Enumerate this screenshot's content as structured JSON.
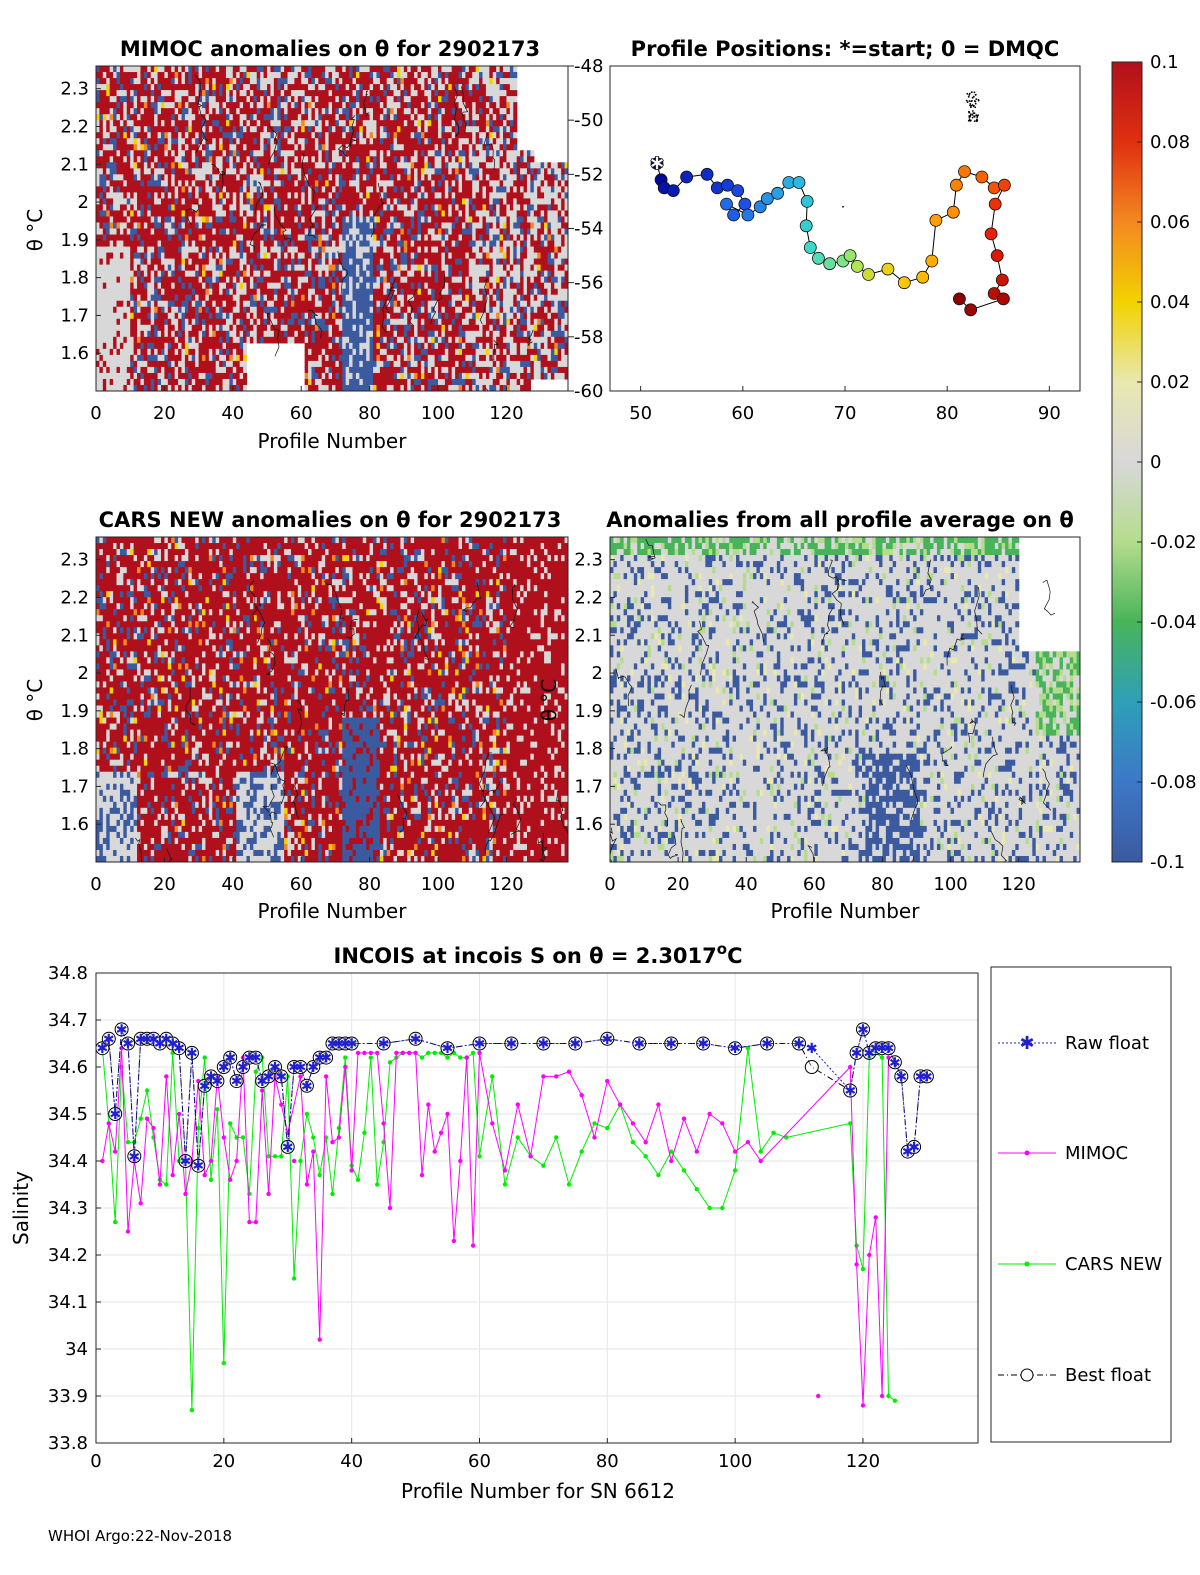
{
  "footer": "WHOI Argo:22-Nov-2018",
  "colorbar": {
    "ticks": [
      "0.1",
      "0.08",
      "0.06",
      "0.04",
      "0.02",
      "0",
      "-0.02",
      "-0.04",
      "-0.06",
      "-0.08",
      "-0.1"
    ],
    "range": [
      -0.1,
      0.1
    ]
  },
  "chart_data": [
    {
      "id": "mimoc-anom",
      "type": "heatmap",
      "title": "MIMOC anomalies on θ  for 2902173",
      "xlabel": "Profile Number",
      "ylabel": "θ °C",
      "xlim": [
        0,
        138
      ],
      "ylim": [
        1.5,
        2.36
      ],
      "xticks": [
        "0",
        "20",
        "40",
        "60",
        "80",
        "100",
        "120"
      ],
      "yticks": [
        "2.3",
        "2.2",
        "2.1",
        "2",
        "1.9",
        "1.8",
        "1.7",
        "1.6"
      ],
      "right_yticks": [
        "-48",
        "-50",
        "-52",
        "-54",
        "-56",
        "-58",
        "-60"
      ]
    },
    {
      "id": "positions",
      "type": "scatter",
      "title": "Profile Positions: *=start; 0 = DMQC",
      "xlim": [
        47,
        93
      ],
      "ylim": [
        -60,
        -48
      ],
      "xticks": [
        "50",
        "60",
        "70",
        "80",
        "90"
      ],
      "track": [
        [
          51.6,
          -51.6
        ],
        [
          52,
          -52.2
        ],
        [
          52.3,
          -52.5
        ],
        [
          53.2,
          -52.6
        ],
        [
          54.5,
          -52.1
        ],
        [
          56.5,
          -52.0
        ],
        [
          57.5,
          -52.5
        ],
        [
          58.5,
          -52.4
        ],
        [
          59.5,
          -52.6
        ],
        [
          60.2,
          -53.1
        ],
        [
          59.1,
          -53.5
        ],
        [
          58.4,
          -53.1
        ],
        [
          60.5,
          -53.5
        ],
        [
          61.7,
          -53.2
        ],
        [
          62.4,
          -52.9
        ],
        [
          63.4,
          -52.7
        ],
        [
          64.5,
          -52.3
        ],
        [
          65.5,
          -52.3
        ],
        [
          66.3,
          -53.0
        ],
        [
          66.2,
          -53.9
        ],
        [
          66.6,
          -54.7
        ],
        [
          67.4,
          -55.1
        ],
        [
          68.5,
          -55.3
        ],
        [
          69.8,
          -55.2
        ],
        [
          70.5,
          -55.0
        ],
        [
          71.2,
          -55.4
        ],
        [
          72.3,
          -55.7
        ],
        [
          74.2,
          -55.5
        ],
        [
          75.8,
          -56.0
        ],
        [
          77.6,
          -55.8
        ],
        [
          78.5,
          -55.2
        ],
        [
          78.9,
          -53.7
        ],
        [
          80.6,
          -53.4
        ],
        [
          80.9,
          -52.4
        ],
        [
          81.7,
          -51.9
        ],
        [
          83.4,
          -52.1
        ],
        [
          84.6,
          -52.5
        ],
        [
          85.6,
          -52.4
        ],
        [
          84.7,
          -53.1
        ],
        [
          84.3,
          -54.2
        ],
        [
          84.9,
          -55.0
        ],
        [
          85.4,
          -55.9
        ],
        [
          84.6,
          -56.4
        ],
        [
          85.5,
          -56.6
        ],
        [
          82.3,
          -57.0
        ],
        [
          81.2,
          -56.6
        ]
      ],
      "dmqc_cluster": [
        82.5,
        -49.5
      ]
    },
    {
      "id": "cars-anom",
      "type": "heatmap",
      "title": "CARS NEW anomalies on θ for 2902173",
      "xlabel": "Profile Number",
      "ylabel": "θ °C",
      "xlim": [
        0,
        138
      ],
      "ylim": [
        1.5,
        2.36
      ],
      "xticks": [
        "0",
        "20",
        "40",
        "60",
        "80",
        "100",
        "120"
      ],
      "yticks": [
        "2.3",
        "2.2",
        "2.1",
        "2",
        "1.9",
        "1.8",
        "1.7",
        "1.6"
      ]
    },
    {
      "id": "all-anom",
      "type": "heatmap",
      "title": "Anomalies from all profile average on θ",
      "xlabel": "Profile Number",
      "ylabel": "θ °C",
      "xlim": [
        0,
        138
      ],
      "ylim": [
        1.5,
        2.36
      ],
      "xticks": [
        "0",
        "20",
        "40",
        "60",
        "80",
        "100",
        "120"
      ],
      "yticks": [
        "2.3",
        "2.2",
        "2.1",
        "2",
        "1.9",
        "1.8",
        "1.7",
        "1.6"
      ]
    },
    {
      "id": "incois-line",
      "type": "line",
      "title_prefix": "INCOIS at incois S on θ = 2.3017",
      "title_sup": "o",
      "title_suffix": "C",
      "xlabel": "Profile Number for SN 6612",
      "ylabel": "Salinity",
      "xlim": [
        0,
        138
      ],
      "ylim": [
        33.8,
        34.8
      ],
      "xticks": [
        "0",
        "20",
        "40",
        "60",
        "80",
        "100",
        "120"
      ],
      "yticks": [
        "34.8",
        "34.7",
        "34.6",
        "34.5",
        "34.4",
        "34.3",
        "34.2",
        "34.1",
        "34",
        "33.9",
        "33.8"
      ],
      "legend": [
        "Raw float",
        "MIMOC",
        "CARS NEW",
        "Best float"
      ],
      "series": [
        {
          "name": "Raw float",
          "color": "#2020d0",
          "x": [
            1,
            2,
            3,
            4,
            5,
            6,
            7,
            8,
            9,
            10,
            11,
            12,
            13,
            14,
            15,
            16,
            17,
            18,
            19,
            20,
            21,
            22,
            23,
            24,
            25,
            26,
            27,
            28,
            29,
            30,
            31,
            32,
            33,
            34,
            35,
            36,
            37,
            38,
            39,
            40,
            45,
            50,
            55,
            60,
            65,
            70,
            75,
            80,
            85,
            90,
            95,
            100,
            105,
            110,
            112,
            118,
            119,
            120,
            121,
            122,
            123,
            124,
            125,
            126,
            127,
            128,
            129,
            130
          ],
          "values": [
            34.64,
            34.66,
            34.5,
            34.68,
            34.65,
            34.41,
            34.66,
            34.66,
            34.66,
            34.65,
            34.66,
            34.65,
            34.64,
            34.4,
            34.63,
            34.39,
            34.56,
            34.58,
            34.57,
            34.6,
            34.62,
            34.57,
            34.6,
            34.62,
            34.62,
            34.57,
            34.58,
            34.6,
            34.58,
            34.43,
            34.6,
            34.6,
            34.56,
            34.6,
            34.62,
            34.62,
            34.65,
            34.65,
            34.65,
            34.65,
            34.65,
            34.66,
            34.64,
            34.65,
            34.65,
            34.65,
            34.65,
            34.66,
            34.65,
            34.65,
            34.65,
            34.64,
            34.65,
            34.65,
            34.64,
            34.55,
            34.63,
            34.68,
            34.63,
            34.64,
            34.64,
            34.64,
            34.61,
            34.58,
            34.42,
            34.43,
            34.58,
            34.58
          ]
        },
        {
          "name": "MIMOC",
          "color": "#ff00ff",
          "x": [
            1,
            2,
            3,
            4,
            5,
            6,
            7,
            8,
            9,
            10,
            11,
            12,
            13,
            14,
            15,
            16,
            17,
            18,
            19,
            20,
            21,
            22,
            23,
            24,
            25,
            26,
            27,
            28,
            29,
            30,
            31,
            32,
            33,
            34,
            35,
            36,
            37,
            38,
            39,
            40,
            41,
            42,
            43,
            44,
            45,
            46,
            47,
            48,
            49,
            50,
            51,
            52,
            53,
            54,
            55,
            56,
            57,
            58,
            59,
            60,
            62,
            64,
            66,
            68,
            70,
            72,
            74,
            76,
            78,
            80,
            82,
            84,
            86,
            88,
            90,
            92,
            94,
            96,
            98,
            100,
            102,
            104,
            113,
            118,
            119,
            120,
            121,
            122,
            123,
            124
          ],
          "values": [
            34.4,
            34.48,
            34.42,
            34.64,
            34.25,
            34.4,
            34.31,
            34.49,
            34.47,
            34.35,
            34.58,
            34.37,
            34.5,
            34.33,
            34.4,
            34.57,
            34.37,
            34.4,
            34.58,
            34.45,
            34.36,
            34.4,
            34.62,
            34.27,
            34.27,
            34.55,
            34.33,
            34.58,
            34.52,
            34.46,
            34.4,
            34.58,
            34.35,
            34.42,
            34.02,
            34.58,
            34.44,
            34.45,
            34.6,
            34.38,
            34.63,
            34.63,
            34.63,
            34.63,
            34.48,
            34.3,
            34.63,
            34.63,
            34.63,
            34.63,
            34.37,
            34.52,
            34.42,
            34.46,
            34.5,
            34.23,
            34.4,
            34.62,
            34.22,
            34.63,
            34.48,
            34.38,
            34.52,
            34.41,
            34.58,
            34.58,
            34.59,
            34.54,
            34.45,
            34.57,
            34.52,
            34.48,
            34.44,
            34.52,
            34.4,
            34.49,
            34.42,
            34.5,
            34.48,
            34.42,
            34.44,
            34.4,
            33.9,
            34.6,
            34.18,
            33.88,
            34.2,
            34.28,
            33.9,
            34.62
          ],
          "markers_only_x": [
            31,
            113
          ]
        },
        {
          "name": "CARS NEW",
          "color": "#00ee00",
          "x": [
            1,
            2,
            3,
            4,
            5,
            6,
            7,
            8,
            9,
            10,
            11,
            12,
            13,
            14,
            15,
            16,
            17,
            18,
            19,
            20,
            21,
            22,
            23,
            24,
            25,
            26,
            27,
            28,
            29,
            30,
            31,
            32,
            33,
            34,
            35,
            36,
            37,
            38,
            39,
            40,
            41,
            42,
            43,
            44,
            45,
            46,
            47,
            48,
            49,
            50,
            51,
            52,
            53,
            54,
            55,
            56,
            57,
            58,
            59,
            60,
            62,
            64,
            66,
            68,
            70,
            72,
            74,
            76,
            78,
            80,
            82,
            84,
            86,
            88,
            90,
            92,
            94,
            96,
            98,
            100,
            102,
            104,
            106,
            108,
            118,
            119,
            120,
            121,
            122,
            123,
            124,
            125
          ],
          "values": [
            34.64,
            34.48,
            34.27,
            34.6,
            34.44,
            34.44,
            34.49,
            34.55,
            34.45,
            34.36,
            34.35,
            34.63,
            34.4,
            34.4,
            33.87,
            34.47,
            34.62,
            34.36,
            34.51,
            33.97,
            34.48,
            34.45,
            34.45,
            34.33,
            34.59,
            34.62,
            34.41,
            34.41,
            34.41,
            34.58,
            34.15,
            34.4,
            34.5,
            34.45,
            34.37,
            34.45,
            34.33,
            34.47,
            34.62,
            34.39,
            34.36,
            34.46,
            34.62,
            34.35,
            34.44,
            34.61,
            34.62,
            34.63,
            34.63,
            34.63,
            34.62,
            34.63,
            34.63,
            34.63,
            34.62,
            34.63,
            34.62,
            34.62,
            34.63,
            34.41,
            34.58,
            34.35,
            34.45,
            34.41,
            34.39,
            34.45,
            34.35,
            34.42,
            34.48,
            34.47,
            34.52,
            34.44,
            34.41,
            34.37,
            34.42,
            34.38,
            34.34,
            34.3,
            34.3,
            34.38,
            34.64,
            34.42,
            34.46,
            34.45,
            34.48,
            34.22,
            34.17,
            34.62,
            34.63,
            34.62,
            33.9,
            33.89
          ],
          "markers_only_x": []
        },
        {
          "name": "Best float",
          "color": "#000000",
          "x": [
            1,
            2,
            3,
            4,
            5,
            6,
            7,
            8,
            9,
            10,
            11,
            12,
            13,
            14,
            15,
            16,
            17,
            18,
            19,
            20,
            21,
            22,
            23,
            24,
            25,
            26,
            27,
            28,
            29,
            30,
            31,
            32,
            33,
            34,
            35,
            36,
            37,
            38,
            39,
            40,
            45,
            50,
            55,
            60,
            65,
            70,
            75,
            80,
            85,
            90,
            95,
            100,
            105,
            110,
            112,
            118,
            119,
            120,
            121,
            122,
            123,
            124,
            125,
            126,
            127,
            128,
            129,
            130
          ],
          "values": [
            34.64,
            34.66,
            34.5,
            34.68,
            34.65,
            34.41,
            34.66,
            34.66,
            34.66,
            34.65,
            34.66,
            34.65,
            34.64,
            34.4,
            34.63,
            34.39,
            34.56,
            34.58,
            34.57,
            34.6,
            34.62,
            34.57,
            34.6,
            34.62,
            34.62,
            34.57,
            34.58,
            34.6,
            34.58,
            34.43,
            34.6,
            34.6,
            34.56,
            34.6,
            34.62,
            34.62,
            34.65,
            34.65,
            34.65,
            34.65,
            34.65,
            34.66,
            34.64,
            34.65,
            34.65,
            34.65,
            34.65,
            34.66,
            34.65,
            34.65,
            34.65,
            34.64,
            34.65,
            34.65,
            34.6,
            34.55,
            34.63,
            34.68,
            34.63,
            34.64,
            34.64,
            34.64,
            34.61,
            34.58,
            34.42,
            34.43,
            34.58,
            34.58
          ]
        }
      ]
    }
  ]
}
